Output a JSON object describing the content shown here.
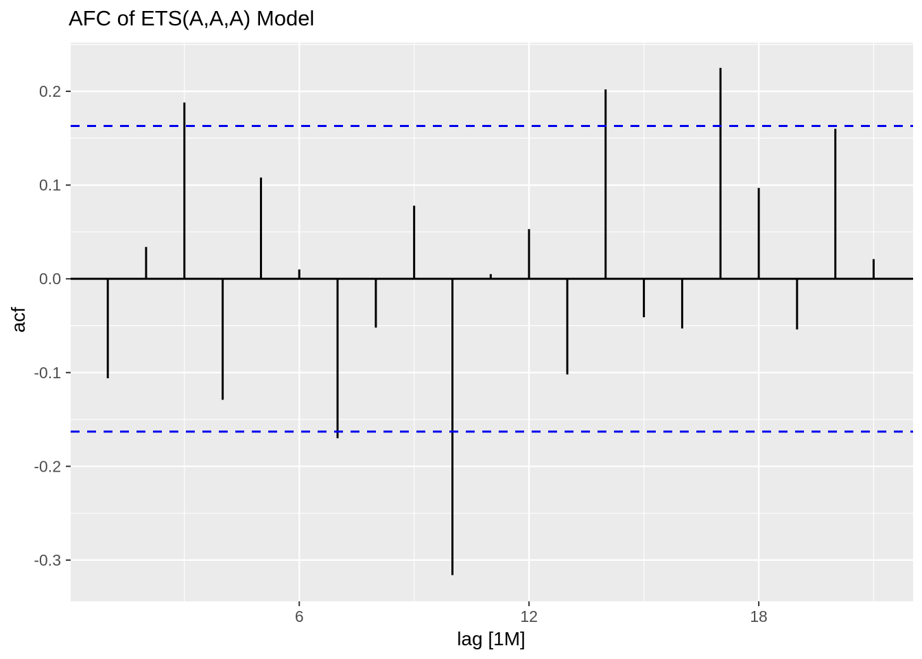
{
  "title": "AFC of ETS(A,A,A) Model",
  "chart_data": {
    "type": "bar",
    "subtype": "acf-lollipop",
    "title": "AFC of ETS(A,A,A) Model",
    "xlabel": "lag [1M]",
    "ylabel": "acf",
    "x": [
      1,
      2,
      3,
      4,
      5,
      6,
      7,
      8,
      9,
      10,
      11,
      12,
      13,
      14,
      15,
      16,
      17,
      18,
      19,
      20,
      21
    ],
    "values": [
      -0.106,
      0.034,
      0.188,
      -0.129,
      0.108,
      0.01,
      -0.17,
      -0.052,
      0.078,
      -0.316,
      0.005,
      0.053,
      -0.102,
      0.202,
      -0.041,
      -0.053,
      0.225,
      0.097,
      -0.054,
      0.16,
      0.021
    ],
    "confidence_bounds": {
      "upper": 0.163,
      "lower": -0.163,
      "line_style": "dashed"
    },
    "xlim": [
      0.03,
      22.03
    ],
    "ylim": [
      -0.344,
      0.252
    ],
    "x_major_ticks": [
      6,
      12,
      18
    ],
    "x_major_tick_labels": [
      "6",
      "12",
      "18"
    ],
    "x_minor_ticks": [
      3,
      9,
      15,
      21
    ],
    "y_major_ticks": [
      0.2,
      0.1,
      0.0,
      -0.1,
      -0.2,
      -0.3
    ],
    "y_major_tick_labels": [
      "0.2",
      "0.1",
      "0.0",
      "-0.1",
      "-0.2",
      "-0.3"
    ],
    "y_minor_ticks": [
      0.25,
      0.15,
      0.05,
      -0.05,
      -0.15,
      -0.25
    ],
    "grid": "major+minor",
    "legend": false
  },
  "colors": {
    "figure_background": "#FFFFFF",
    "panel_background": "#EBEBEB",
    "grid_major": "#FFFFFF",
    "grid_minor": "#FFFFFF",
    "bar": "#000000",
    "zero_line": "#000000",
    "confidence_line": "#0000EE",
    "tick_mark": "#333333",
    "tick_label": "#4D4D4D",
    "axis_title": "#000000",
    "title": "#000000"
  }
}
